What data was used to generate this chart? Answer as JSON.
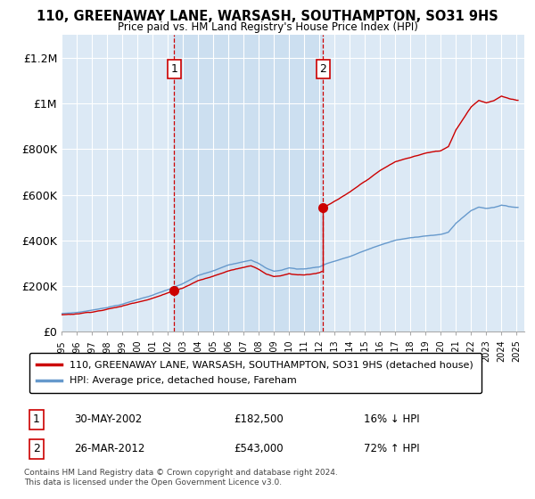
{
  "title": "110, GREENAWAY LANE, WARSASH, SOUTHAMPTON, SO31 9HS",
  "subtitle": "Price paid vs. HM Land Registry's House Price Index (HPI)",
  "background_color": "#ffffff",
  "plot_bg_color": "#dce9f5",
  "shaded_bg_color": "#ccdff0",
  "grid_color": "#ffffff",
  "purchase1": {
    "date": "30-MAY-2002",
    "price": 182500,
    "label": "16% ↓ HPI",
    "year": 2002.42
  },
  "purchase2": {
    "date": "26-MAR-2012",
    "price": 543000,
    "label": "72% ↑ HPI",
    "year": 2012.23
  },
  "legend_line1": "110, GREENAWAY LANE, WARSASH, SOUTHAMPTON, SO31 9HS (detached house)",
  "legend_line2": "HPI: Average price, detached house, Fareham",
  "footer": "Contains HM Land Registry data © Crown copyright and database right 2024.\nThis data is licensed under the Open Government Licence v3.0.",
  "table_row1": [
    "1",
    "30-MAY-2002",
    "£182,500",
    "16% ↓ HPI"
  ],
  "table_row2": [
    "2",
    "26-MAR-2012",
    "£543,000",
    "72% ↑ HPI"
  ],
  "red_color": "#cc0000",
  "blue_color": "#6699cc",
  "vline_color": "#cc0000",
  "ylim": [
    0,
    1300000
  ],
  "yticks": [
    0,
    200000,
    400000,
    600000,
    800000,
    1000000,
    1200000
  ],
  "ytick_labels": [
    "£0",
    "£200K",
    "£400K",
    "£600K",
    "£800K",
    "£1M",
    "£1.2M"
  ],
  "xmin": 1995,
  "xmax": 2025.5
}
